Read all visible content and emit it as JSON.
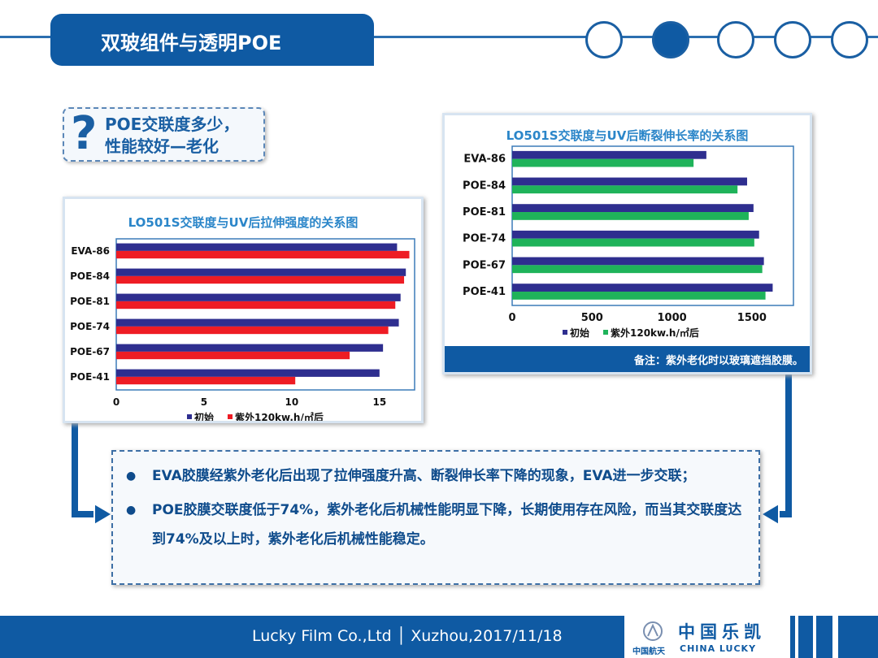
{
  "header": {
    "title": "双玻组件与透明POE",
    "nav_dots": [
      {
        "active": false
      },
      {
        "active": true
      },
      {
        "active": false
      },
      {
        "active": false
      },
      {
        "active": false
      }
    ]
  },
  "question": {
    "mark": "?",
    "line1": "POE交联度多少，",
    "line2": "性能较好—老化"
  },
  "colors": {
    "brand": "#0f5aa3",
    "initial": "#2e2e8f",
    "red": "#ee1c24",
    "green": "#1fb35a"
  },
  "chart_data": [
    {
      "type": "bar",
      "title": "LO501S交联度与UV后拉伸强度的关系图",
      "categories": [
        "EVA-86",
        "POE-84",
        "POE-81",
        "POE-74",
        "POE-67",
        "POE-41"
      ],
      "series": [
        {
          "name": "初始",
          "values": [
            16.0,
            16.5,
            16.2,
            16.1,
            15.2,
            15.0
          ]
        },
        {
          "name": "紫外120kw.h/㎡后",
          "values": [
            16.7,
            16.4,
            15.9,
            15.5,
            13.3,
            10.2
          ]
        }
      ],
      "xticks": [
        0,
        5,
        10,
        15
      ],
      "xlim": [
        0,
        17
      ],
      "legend": "bottom"
    },
    {
      "type": "bar",
      "title": "LO501S交联度与UV后断裂伸长率的关系图",
      "categories": [
        "EVA-86",
        "POE-84",
        "POE-81",
        "POE-74",
        "POE-67",
        "POE-41"
      ],
      "series": [
        {
          "name": "初始",
          "values": [
            1215,
            1470,
            1510,
            1545,
            1575,
            1630
          ]
        },
        {
          "name": "紫外120kw.h/㎡后",
          "values": [
            1135,
            1410,
            1480,
            1515,
            1565,
            1585
          ]
        }
      ],
      "xticks": [
        0,
        500,
        1000,
        1500
      ],
      "xlim": [
        0,
        1760
      ],
      "legend": "bottom",
      "note": "备注：紫外老化时以玻璃遮挡胶膜。"
    }
  ],
  "summary": {
    "bullets": [
      "EVA胶膜经紫外老化后出现了拉伸强度升高、断裂伸长率下降的现象，EVA进一步交联；",
      "POE胶膜交联度低于74%，紫外老化后机械性能明显下降，长期使用存在风险，而当其交联度达到74%及以上时，紫外老化后机械性能稳定。"
    ]
  },
  "footer": {
    "text": "Lucky Film Co.,Ltd │ Xuzhou,2017/11/18",
    "logo_cn": "中国乐凯",
    "logo_en": "CHINA LUCKY",
    "logo_sub": "中国航天"
  }
}
